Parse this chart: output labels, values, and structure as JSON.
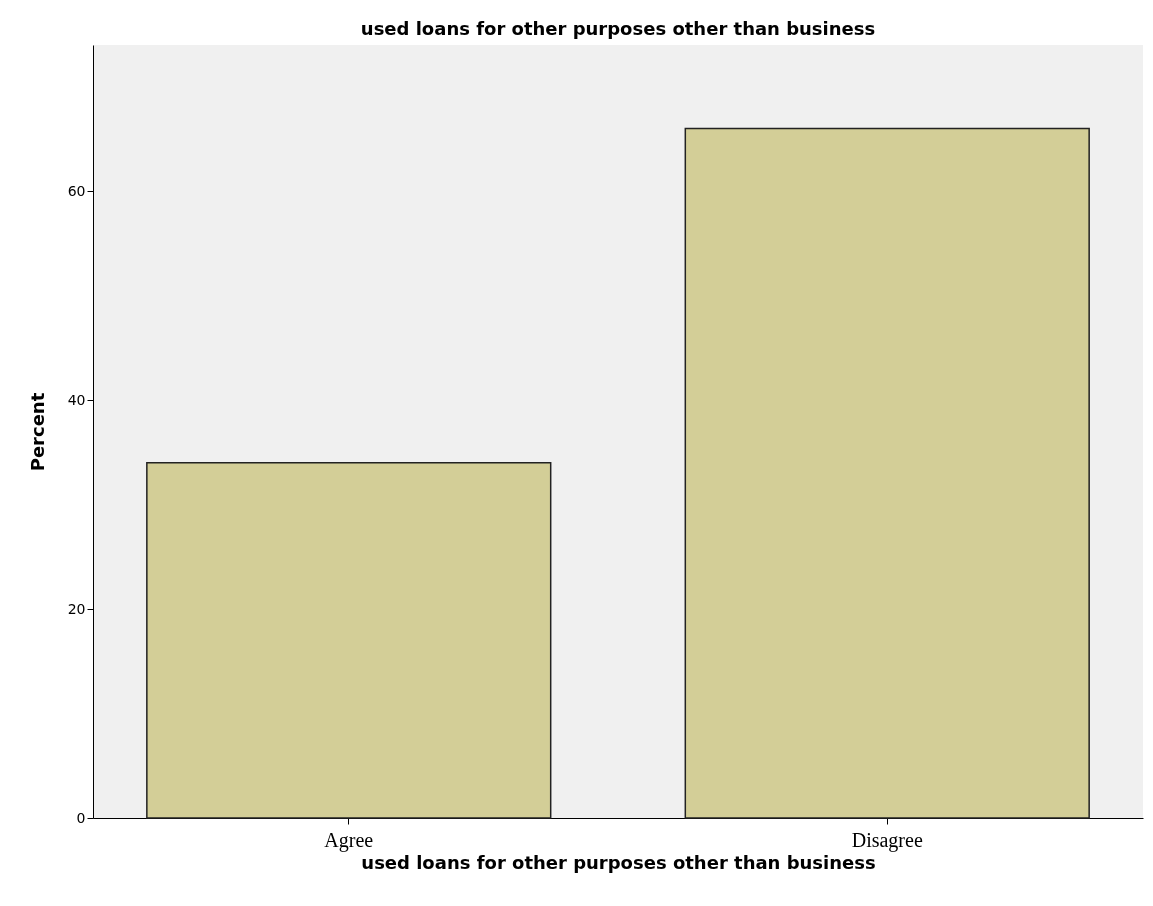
{
  "chart_data": {
    "type": "bar",
    "title": "used loans for other purposes other than business",
    "xlabel": "used loans for other purposes other than business",
    "ylabel": "Percent",
    "categories": [
      "Agree",
      "Disagree"
    ],
    "values": [
      34,
      66
    ],
    "color": "#d3ce97",
    "ylim": [
      0,
      74
    ],
    "yticks": [
      0,
      20,
      40,
      60
    ],
    "grid": false
  }
}
